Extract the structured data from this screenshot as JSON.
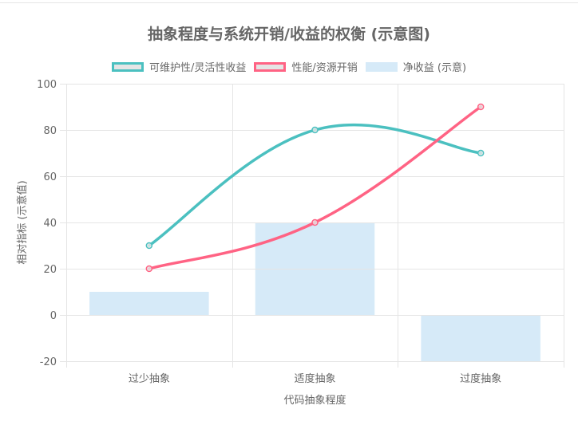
{
  "chart_data": {
    "type": "bar+line",
    "title": "抽象程度与系统开销/收益的权衡 (示意图)",
    "xlabel": "代码抽象程度",
    "ylabel": "相对指标 (示意值)",
    "categories": [
      "过少抽象",
      "适度抽象",
      "过度抽象"
    ],
    "ylim": [
      -20,
      100
    ],
    "yticks": [
      100,
      80,
      60,
      40,
      20,
      0,
      -20
    ],
    "grid": true,
    "legend_position": "top",
    "series": [
      {
        "name": "可维护性/灵活性收益",
        "type": "line",
        "color": "#4bc0c0",
        "values": [
          30,
          80,
          70
        ]
      },
      {
        "name": "性能/资源开销",
        "type": "line",
        "color": "#ff6384",
        "values": [
          20,
          40,
          90
        ]
      },
      {
        "name": "净收益 (示意)",
        "type": "bar",
        "color": "#d6eaf8",
        "values": [
          10,
          40,
          -20
        ]
      }
    ]
  },
  "legend": {
    "items": [
      {
        "label": "可维护性/灵活性收益",
        "border": "#4bc0c0",
        "fill": "#e5e5e5"
      },
      {
        "label": "性能/资源开销",
        "border": "#ff6384",
        "fill": "#e5e5e5"
      },
      {
        "label": "净收益 (示意)",
        "border": "#d6eaf8",
        "fill": "#d6eaf8"
      }
    ]
  },
  "colors": {
    "grid": "#e5e5e5",
    "text": "#666666",
    "teal": "#4bc0c0",
    "pink": "#ff6384",
    "bar": "#d6eaf8"
  }
}
